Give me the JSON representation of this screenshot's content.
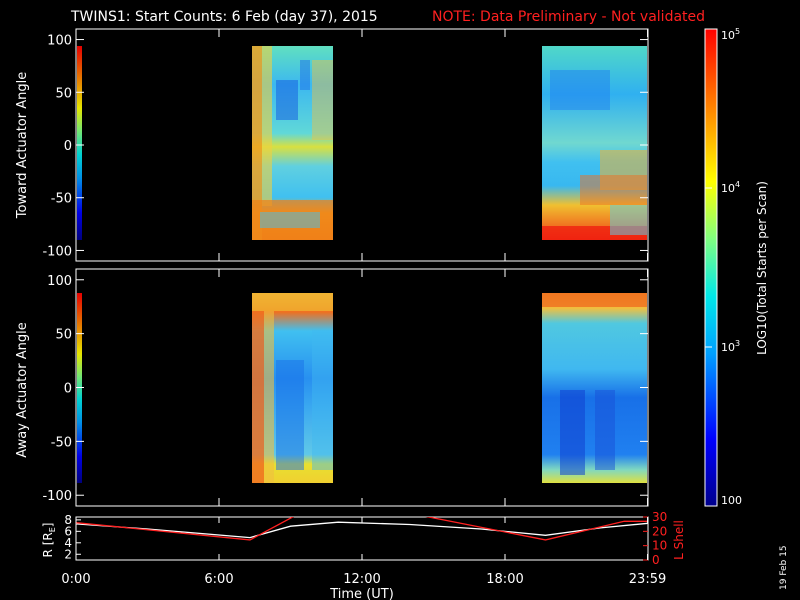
{
  "header": {
    "title": "TWINS1: Start Counts:  6 Feb (day  37), 2015",
    "note": "NOTE: Data Preliminary - Not validated"
  },
  "panels": {
    "toward": {
      "ylabel": "Toward Actuator Angle",
      "yticks": [
        "100",
        "50",
        "0",
        "-50",
        "-100"
      ]
    },
    "away": {
      "ylabel": "Away Actuator Angle",
      "yticks": [
        "100",
        "50",
        "0",
        "-50",
        "-100"
      ]
    }
  },
  "colorbar": {
    "label": "LOG10(Total Starts per Scan)",
    "ticks": [
      {
        "base": "10",
        "exp": "5",
        "value": 100000
      },
      {
        "base": "10",
        "exp": "4",
        "value": 10000
      },
      {
        "base": "10",
        "exp": "3",
        "value": 1000
      },
      {
        "base": "100",
        "exp": "",
        "value": 100
      }
    ]
  },
  "orbit": {
    "left_label": "R [RE]",
    "left_ticks": [
      "8",
      "6",
      "4",
      "2"
    ],
    "right_label": "L Shell",
    "right_ticks": [
      "30",
      "20",
      "10",
      "0"
    ]
  },
  "xaxis": {
    "label": "Time (UT)",
    "ticks": [
      "0:00",
      "6:00",
      "12:00",
      "18:00",
      "23:59"
    ]
  },
  "stamp": "19 Feb 15",
  "chart_data": [
    {
      "type": "heatmap",
      "title": "TWINS1: Start Counts:  6 Feb (day  37), 2015",
      "ylabel": "Toward Actuator Angle",
      "xlabel": "",
      "ylim": [
        -110,
        110
      ],
      "xlim_hours": [
        0,
        24
      ],
      "colorscale": "log",
      "zlim": [
        100,
        100000
      ],
      "data_intervals_hours": [
        [
          7.3,
          10.5
        ],
        [
          19.8,
          24.0
        ]
      ],
      "notes": "counts ~1e4-3e4 near edges, ~2e3-5e3 in interior"
    },
    {
      "type": "heatmap",
      "ylabel": "Away Actuator Angle",
      "xlabel": "",
      "ylim": [
        -110,
        110
      ],
      "xlim_hours": [
        0,
        24
      ],
      "colorscale": "log",
      "zlim": [
        100,
        100000
      ],
      "data_intervals_hours": [
        [
          7.3,
          10.5
        ],
        [
          19.8,
          24.0
        ]
      ]
    },
    {
      "type": "line",
      "xlabel": "Time (UT)",
      "xlim_hours": [
        0,
        24
      ],
      "series": [
        {
          "name": "R [RE]",
          "axis": "left",
          "ylim": [
            1,
            8.5
          ],
          "x": [
            0,
            3,
            7.3,
            9,
            11,
            14,
            17,
            19.7,
            22,
            24
          ],
          "y": [
            7.3,
            6.4,
            4.9,
            6.9,
            7.6,
            7.2,
            6.4,
            5.3,
            6.6,
            7.4
          ]
        },
        {
          "name": "L Shell",
          "axis": "right",
          "ylim": [
            0,
            30
          ],
          "x": [
            0,
            7.3,
            9.2,
            14.5,
            19.7,
            23,
            24
          ],
          "y": [
            26,
            14,
            31,
            31,
            14,
            27,
            27
          ]
        }
      ]
    }
  ]
}
